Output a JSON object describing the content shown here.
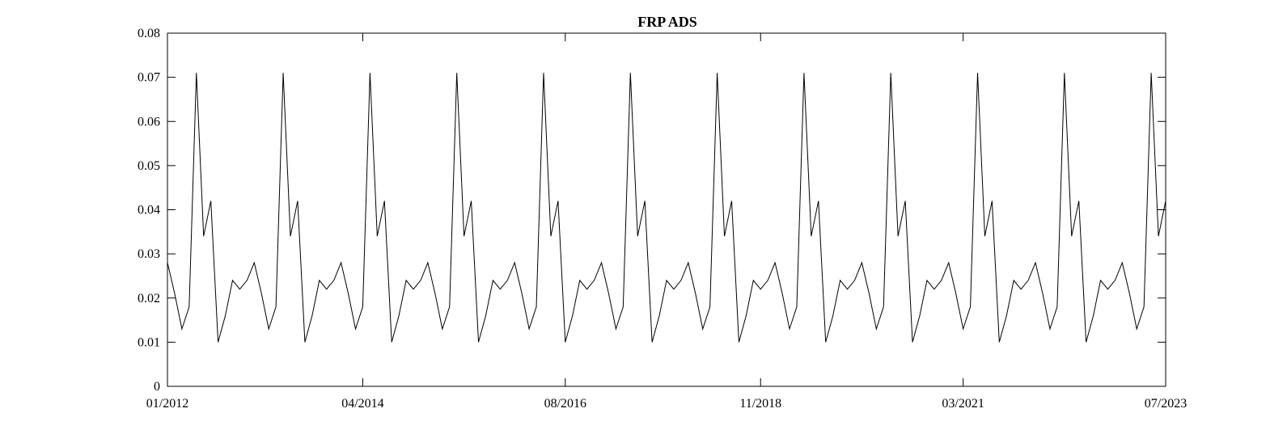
{
  "chart_data": {
    "type": "line",
    "title": "FRP ADS",
    "xlabel": "",
    "ylabel": "",
    "x_start": "01/2012",
    "x_end": "07/2023",
    "x_tick_labels": [
      "01/2012",
      "04/2014",
      "08/2016",
      "11/2018",
      "03/2021",
      "07/2023"
    ],
    "ylim": [
      0,
      0.08
    ],
    "y_ticks": [
      0,
      0.01,
      0.02,
      0.03,
      0.04,
      0.05,
      0.06,
      0.07,
      0.08
    ],
    "y_tick_labels": [
      "0",
      "0.01",
      "0.02",
      "0.03",
      "0.04",
      "0.05",
      "0.06",
      "0.07",
      "0.08"
    ],
    "grid": false,
    "series": [
      {
        "name": "",
        "color": "#000000",
        "values": [
          0.028,
          0.021,
          0.013,
          0.018,
          0.071,
          0.034,
          0.042,
          0.01,
          0.016,
          0.024,
          0.022,
          0.024,
          0.028,
          0.021,
          0.013,
          0.018,
          0.071,
          0.034,
          0.042,
          0.01,
          0.016,
          0.024,
          0.022,
          0.024,
          0.028,
          0.021,
          0.013,
          0.018,
          0.071,
          0.034,
          0.042,
          0.01,
          0.016,
          0.024,
          0.022,
          0.024,
          0.028,
          0.021,
          0.013,
          0.018,
          0.071,
          0.034,
          0.042,
          0.01,
          0.016,
          0.024,
          0.022,
          0.024,
          0.028,
          0.021,
          0.013,
          0.018,
          0.071,
          0.034,
          0.042,
          0.01,
          0.016,
          0.024,
          0.022,
          0.024,
          0.028,
          0.021,
          0.013,
          0.018,
          0.071,
          0.034,
          0.042,
          0.01,
          0.016,
          0.024,
          0.022,
          0.024,
          0.028,
          0.021,
          0.013,
          0.018,
          0.071,
          0.034,
          0.042,
          0.01,
          0.016,
          0.024,
          0.022,
          0.024,
          0.028,
          0.021,
          0.013,
          0.018,
          0.071,
          0.034,
          0.042,
          0.01,
          0.016,
          0.024,
          0.022,
          0.024,
          0.028,
          0.021,
          0.013,
          0.018,
          0.071,
          0.034,
          0.042,
          0.01,
          0.016,
          0.024,
          0.022,
          0.024,
          0.028,
          0.021,
          0.013,
          0.018,
          0.071,
          0.034,
          0.042,
          0.01,
          0.016,
          0.024,
          0.022,
          0.024,
          0.028,
          0.021,
          0.013,
          0.018,
          0.071,
          0.034,
          0.042,
          0.01,
          0.016,
          0.024,
          0.022,
          0.024,
          0.028,
          0.021,
          0.013,
          0.018,
          0.071,
          0.034,
          0.042
        ]
      }
    ]
  }
}
